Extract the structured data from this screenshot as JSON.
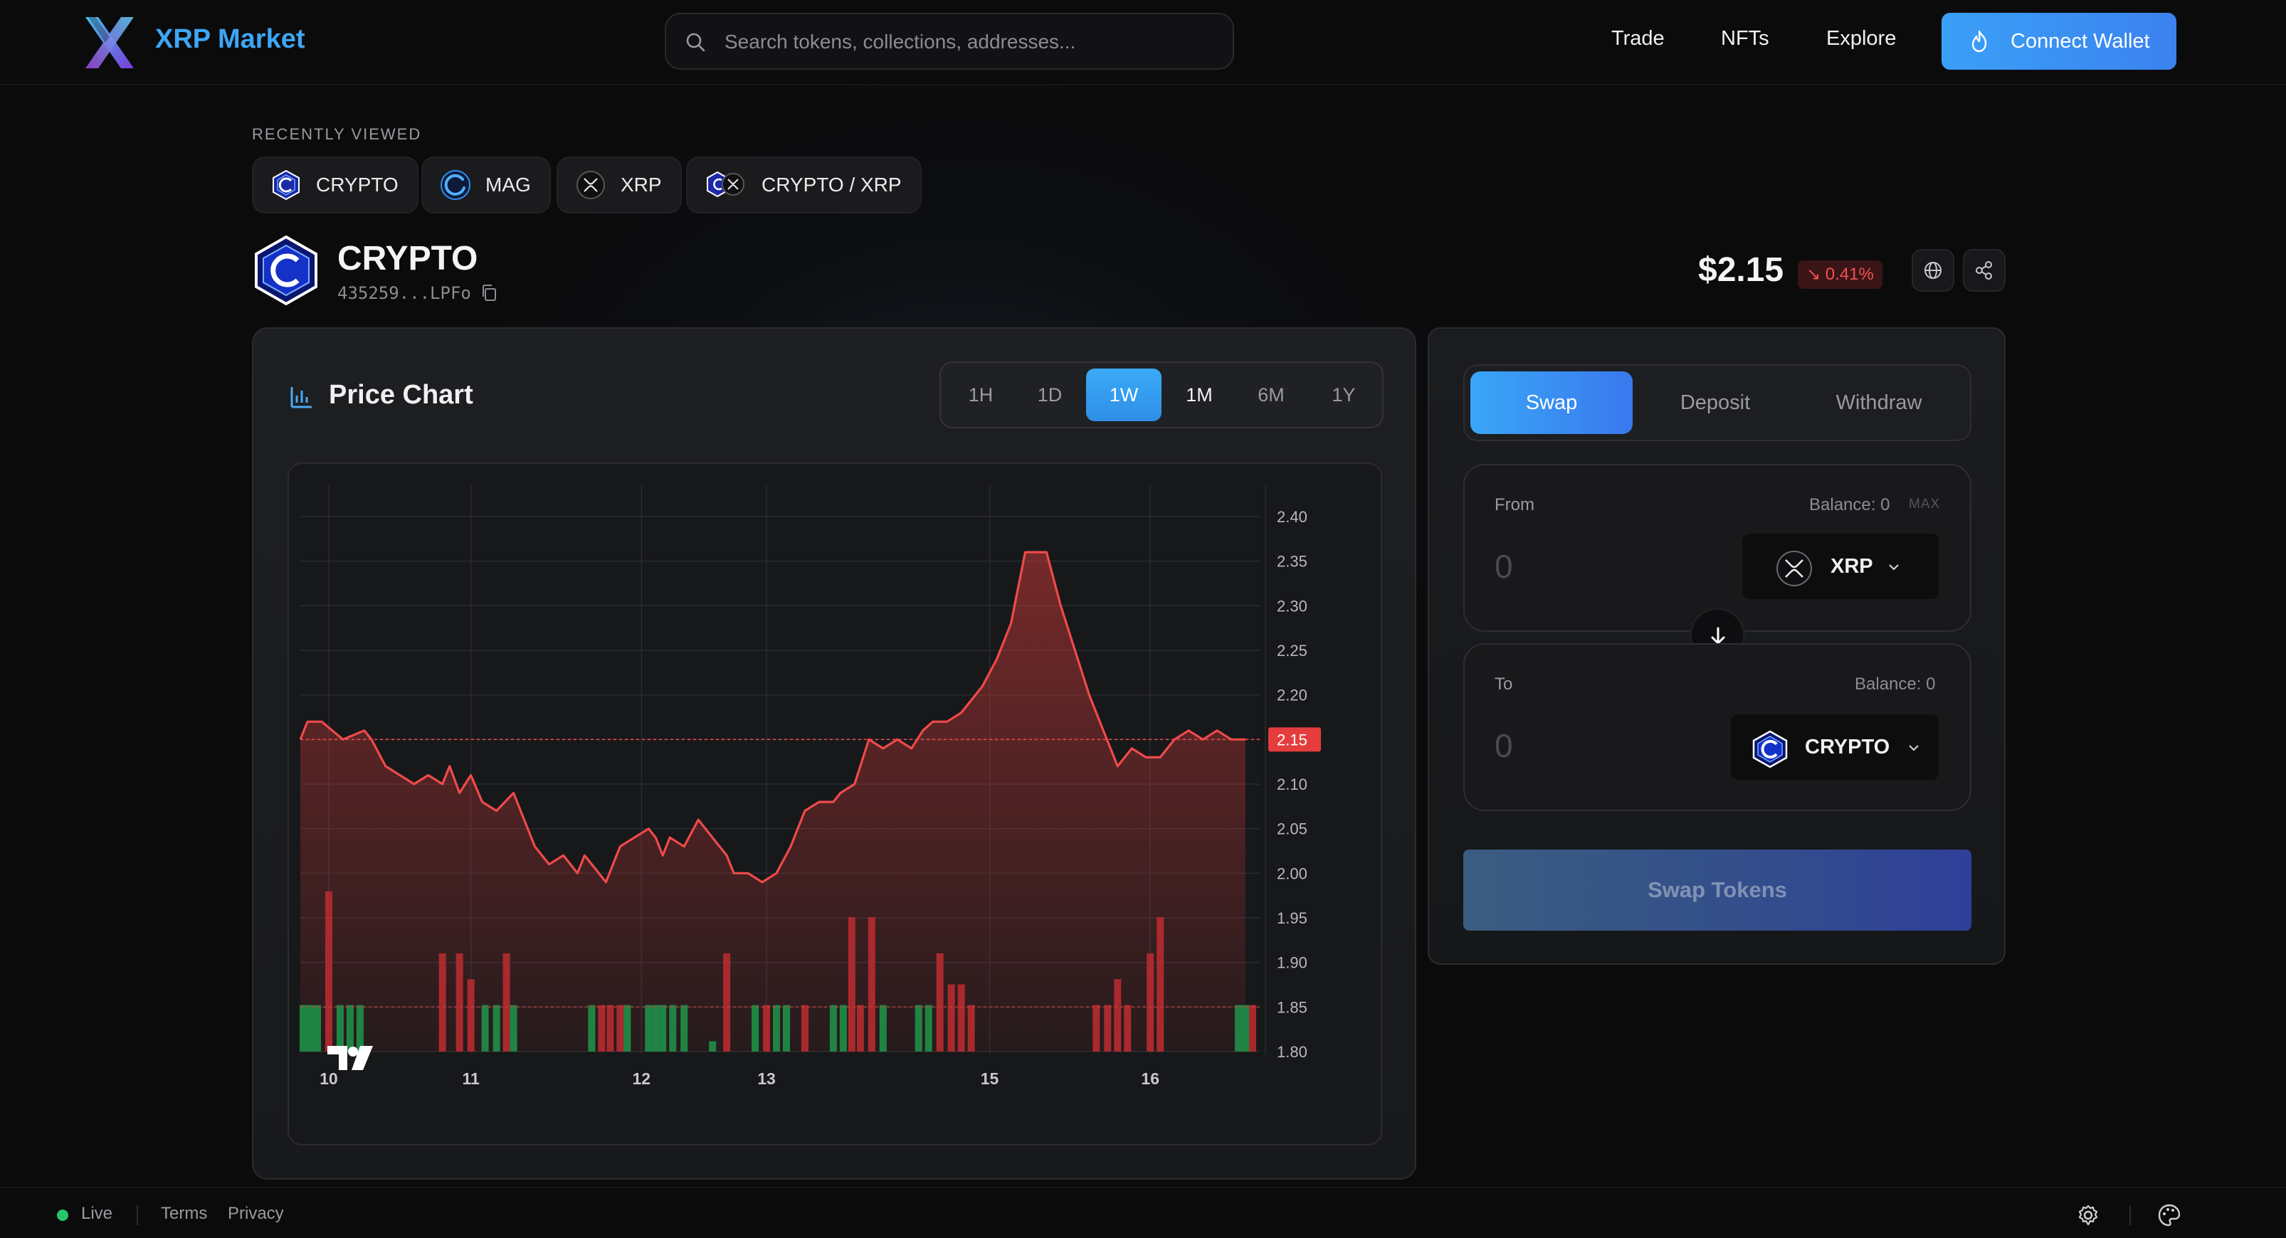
{
  "header": {
    "brand": "XRP Market",
    "search_placeholder": "Search tokens, collections, addresses...",
    "nav": [
      "Trade",
      "NFTs",
      "Explore"
    ],
    "connect_label": "Connect Wallet"
  },
  "recently_viewed": {
    "title": "RECENTLY VIEWED",
    "items": [
      {
        "label": "CRYPTO",
        "icon": "crypto-token-icon"
      },
      {
        "label": "MAG",
        "icon": "mag-token-icon"
      },
      {
        "label": "XRP",
        "icon": "xrp-token-icon"
      },
      {
        "label": "CRYPTO / XRP",
        "icon": "pair-icon"
      }
    ]
  },
  "token": {
    "name": "CRYPTO",
    "address": "435259...LPFo",
    "price": "$2.15",
    "change": "↘ 0.41%",
    "change_color": "#f0524f"
  },
  "chart": {
    "title": "Price Chart",
    "timeframes": [
      "1H",
      "1D",
      "1W",
      "1M",
      "6M",
      "1Y"
    ],
    "active_timeframe": "1W",
    "current_label": "2.15"
  },
  "chart_data": {
    "type": "line",
    "y_ticks": [
      "2.40",
      "2.35",
      "2.30",
      "2.25",
      "2.20",
      "2.15",
      "2.10",
      "2.05",
      "2.00",
      "1.95",
      "1.90",
      "1.85",
      "1.80"
    ],
    "x_ticks": [
      "10",
      "11",
      "12",
      "13",
      "15",
      "16"
    ],
    "x_tick_pos": [
      0.2,
      1.2,
      2.4,
      3.28,
      4.85,
      5.98
    ],
    "ylim": [
      1.8,
      2.4
    ],
    "xlim": [
      0,
      6.75
    ],
    "price": [
      [
        0,
        2.15
      ],
      [
        0.05,
        2.17
      ],
      [
        0.15,
        2.17
      ],
      [
        0.3,
        2.15
      ],
      [
        0.45,
        2.16
      ],
      [
        0.5,
        2.15
      ],
      [
        0.6,
        2.12
      ],
      [
        0.7,
        2.11
      ],
      [
        0.8,
        2.1
      ],
      [
        0.9,
        2.11
      ],
      [
        1.0,
        2.1
      ],
      [
        1.05,
        2.12
      ],
      [
        1.12,
        2.09
      ],
      [
        1.2,
        2.11
      ],
      [
        1.28,
        2.08
      ],
      [
        1.38,
        2.07
      ],
      [
        1.5,
        2.09
      ],
      [
        1.55,
        2.07
      ],
      [
        1.65,
        2.03
      ],
      [
        1.75,
        2.01
      ],
      [
        1.85,
        2.02
      ],
      [
        1.95,
        2.0
      ],
      [
        2.0,
        2.02
      ],
      [
        2.1,
        2.0
      ],
      [
        2.15,
        1.99
      ],
      [
        2.25,
        2.03
      ],
      [
        2.35,
        2.04
      ],
      [
        2.45,
        2.05
      ],
      [
        2.5,
        2.04
      ],
      [
        2.55,
        2.02
      ],
      [
        2.6,
        2.04
      ],
      [
        2.7,
        2.03
      ],
      [
        2.8,
        2.06
      ],
      [
        2.85,
        2.05
      ],
      [
        2.9,
        2.04
      ],
      [
        3.0,
        2.02
      ],
      [
        3.05,
        2.0
      ],
      [
        3.15,
        2.0
      ],
      [
        3.25,
        1.99
      ],
      [
        3.35,
        2.0
      ],
      [
        3.45,
        2.03
      ],
      [
        3.55,
        2.07
      ],
      [
        3.65,
        2.08
      ],
      [
        3.75,
        2.08
      ],
      [
        3.8,
        2.09
      ],
      [
        3.9,
        2.1
      ],
      [
        4.0,
        2.15
      ],
      [
        4.1,
        2.14
      ],
      [
        4.2,
        2.15
      ],
      [
        4.3,
        2.14
      ],
      [
        4.38,
        2.16
      ],
      [
        4.45,
        2.17
      ],
      [
        4.55,
        2.17
      ],
      [
        4.65,
        2.18
      ],
      [
        4.75,
        2.2
      ],
      [
        4.8,
        2.21
      ],
      [
        4.9,
        2.24
      ],
      [
        5.0,
        2.28
      ],
      [
        5.1,
        2.36
      ],
      [
        5.25,
        2.36
      ],
      [
        5.35,
        2.3
      ],
      [
        5.45,
        2.25
      ],
      [
        5.55,
        2.2
      ],
      [
        5.65,
        2.16
      ],
      [
        5.75,
        2.12
      ],
      [
        5.85,
        2.14
      ],
      [
        5.95,
        2.13
      ],
      [
        6.05,
        2.13
      ],
      [
        6.15,
        2.15
      ],
      [
        6.25,
        2.16
      ],
      [
        6.35,
        2.15
      ],
      [
        6.45,
        2.16
      ],
      [
        6.55,
        2.15
      ],
      [
        6.65,
        2.15
      ]
    ],
    "volume": [
      [
        0.02,
        0.9,
        "g"
      ],
      [
        0.07,
        0.9,
        "g"
      ],
      [
        0.12,
        0.9,
        "g"
      ],
      [
        0.2,
        3.1,
        "r"
      ],
      [
        0.28,
        0.9,
        "g"
      ],
      [
        0.35,
        0.9,
        "g"
      ],
      [
        0.42,
        0.9,
        "g"
      ],
      [
        1.0,
        1.9,
        "r"
      ],
      [
        1.12,
        1.9,
        "r"
      ],
      [
        1.2,
        1.4,
        "r"
      ],
      [
        1.3,
        0.9,
        "g"
      ],
      [
        1.38,
        0.9,
        "g"
      ],
      [
        1.45,
        1.9,
        "r"
      ],
      [
        1.5,
        0.9,
        "g"
      ],
      [
        2.05,
        0.9,
        "g"
      ],
      [
        2.12,
        0.9,
        "r"
      ],
      [
        2.18,
        0.9,
        "r"
      ],
      [
        2.25,
        0.9,
        "r"
      ],
      [
        2.3,
        0.9,
        "g"
      ],
      [
        2.45,
        0.9,
        "g"
      ],
      [
        2.5,
        0.9,
        "g"
      ],
      [
        2.55,
        0.9,
        "g"
      ],
      [
        2.62,
        0.9,
        "g"
      ],
      [
        2.7,
        0.9,
        "g"
      ],
      [
        2.9,
        0.2,
        "g"
      ],
      [
        3.0,
        1.9,
        "r"
      ],
      [
        3.2,
        0.9,
        "g"
      ],
      [
        3.28,
        0.9,
        "r"
      ],
      [
        3.35,
        0.9,
        "g"
      ],
      [
        3.42,
        0.9,
        "g"
      ],
      [
        3.55,
        0.9,
        "r"
      ],
      [
        3.75,
        0.9,
        "g"
      ],
      [
        3.82,
        0.9,
        "g"
      ],
      [
        3.88,
        2.6,
        "r"
      ],
      [
        3.94,
        0.9,
        "r"
      ],
      [
        4.02,
        2.6,
        "r"
      ],
      [
        4.1,
        0.9,
        "g"
      ],
      [
        4.35,
        0.9,
        "g"
      ],
      [
        4.42,
        0.9,
        "g"
      ],
      [
        4.5,
        1.9,
        "r"
      ],
      [
        4.58,
        1.3,
        "r"
      ],
      [
        4.65,
        1.3,
        "r"
      ],
      [
        4.72,
        0.9,
        "r"
      ],
      [
        5.6,
        0.9,
        "r"
      ],
      [
        5.68,
        0.9,
        "r"
      ],
      [
        5.75,
        1.4,
        "r"
      ],
      [
        5.82,
        0.9,
        "r"
      ],
      [
        5.98,
        1.9,
        "r"
      ],
      [
        6.05,
        2.6,
        "r"
      ],
      [
        6.6,
        0.9,
        "g"
      ],
      [
        6.65,
        0.9,
        "g"
      ],
      [
        6.7,
        0.9,
        "r"
      ]
    ]
  },
  "swap": {
    "tabs": [
      "Swap",
      "Deposit",
      "Withdraw"
    ],
    "from_label": "From",
    "from_balance": "Balance: 0",
    "max_label": "MAX",
    "from_placeholder": "0",
    "from_token": "XRP",
    "to_label": "To",
    "to_balance": "Balance: 0",
    "to_placeholder": "0",
    "to_token": "CRYPTO",
    "button": "Swap Tokens"
  },
  "footer": {
    "status": "Live",
    "links": [
      "Terms",
      "Privacy"
    ]
  }
}
